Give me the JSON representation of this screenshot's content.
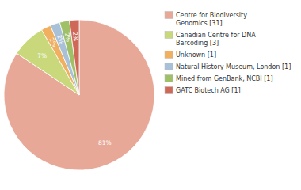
{
  "chart_data": {
    "type": "pie",
    "labels": [
      "Centre for Biodiversity\nGenomics [31]",
      "Canadian Centre for DNA\nBarcoding [3]",
      "Unknown [1]",
      "Natural History Museum, London [1]",
      "Mined from GenBank, NCBI [1]",
      "GATC Biotech AG [1]"
    ],
    "values": [
      81,
      7,
      2,
      2,
      2,
      2
    ],
    "value_labels": [
      "81%",
      "7%",
      "2%",
      "2%",
      "2%",
      "2%"
    ],
    "colors": [
      "#e8a898",
      "#c8d87a",
      "#f0b060",
      "#a8c0d8",
      "#a0c068",
      "#d06858"
    ],
    "data_labels": true,
    "legend": "upper right"
  }
}
